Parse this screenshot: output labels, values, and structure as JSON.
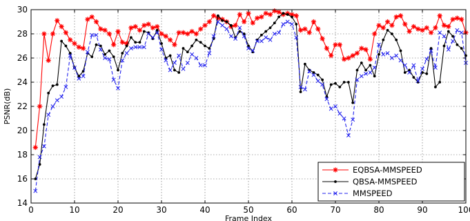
{
  "chart_data": {
    "type": "line",
    "xlabel": "Frame Index",
    "ylabel": "PSNR(dB)",
    "xlim": [
      0,
      100
    ],
    "ylim": [
      14,
      30
    ],
    "xticks": [
      0,
      10,
      20,
      30,
      40,
      50,
      60,
      70,
      80,
      90,
      100
    ],
    "yticks": [
      14,
      16,
      18,
      20,
      22,
      24,
      26,
      28,
      30
    ],
    "grid": true,
    "legend_position": "bottom-right",
    "series": [
      {
        "name": "EQBSA-MMSPEED",
        "color": "#ff0000",
        "line_style": "solid",
        "marker": "star",
        "x": [
          1,
          2,
          3,
          4,
          5,
          6,
          7,
          8,
          9,
          10,
          11,
          12,
          13,
          14,
          15,
          16,
          17,
          18,
          19,
          20,
          21,
          22,
          23,
          24,
          25,
          26,
          27,
          28,
          29,
          30,
          31,
          32,
          33,
          34,
          35,
          36,
          37,
          38,
          39,
          40,
          41,
          42,
          43,
          44,
          45,
          46,
          47,
          48,
          49,
          50,
          51,
          52,
          53,
          54,
          55,
          56,
          57,
          58,
          59,
          60,
          61,
          62,
          63,
          64,
          65,
          66,
          67,
          68,
          69,
          70,
          71,
          72,
          73,
          74,
          75,
          76,
          77,
          78,
          79,
          80,
          81,
          82,
          83,
          84,
          85,
          86,
          87,
          88,
          89,
          90,
          91,
          92,
          93,
          94,
          95,
          96,
          97,
          98,
          99,
          100
        ],
        "y": [
          18.6,
          22.0,
          28.0,
          25.8,
          28.0,
          29.1,
          28.6,
          28.1,
          27.5,
          27.2,
          26.9,
          26.8,
          29.2,
          29.4,
          29.0,
          28.4,
          28.3,
          28.0,
          27.1,
          28.2,
          27.3,
          27.2,
          28.5,
          28.6,
          28.3,
          28.7,
          28.8,
          28.5,
          28.6,
          28.0,
          27.8,
          27.5,
          27.1,
          28.1,
          28.1,
          28.0,
          28.2,
          28.0,
          28.4,
          28.7,
          29.0,
          29.5,
          29.3,
          29.2,
          29.0,
          28.6,
          28.7,
          29.6,
          29.0,
          29.7,
          28.9,
          29.3,
          29.4,
          29.7,
          29.6,
          29.9,
          29.8,
          29.6,
          29.7,
          29.6,
          29.5,
          28.3,
          28.4,
          28.1,
          29.0,
          28.4,
          27.6,
          26.8,
          26.2,
          27.1,
          27.1,
          25.9,
          26.0,
          26.2,
          26.4,
          26.8,
          26.7,
          25.9,
          28.0,
          28.7,
          28.5,
          29.0,
          28.7,
          29.4,
          29.5,
          28.8,
          28.2,
          28.6,
          28.4,
          28.3,
          28.5,
          28.1,
          28.5,
          29.5,
          28.7,
          28.6,
          29.2,
          29.3,
          29.2,
          28.1
        ]
      },
      {
        "name": "QBSA-MMSPEED",
        "color": "#000000",
        "line_style": "solid",
        "marker": "dot",
        "x": [
          1,
          2,
          3,
          4,
          5,
          6,
          7,
          8,
          9,
          10,
          11,
          12,
          13,
          14,
          15,
          16,
          17,
          18,
          19,
          20,
          21,
          22,
          23,
          24,
          25,
          26,
          27,
          28,
          29,
          30,
          31,
          32,
          33,
          34,
          35,
          36,
          37,
          38,
          39,
          40,
          41,
          42,
          43,
          44,
          45,
          46,
          47,
          48,
          49,
          50,
          51,
          52,
          53,
          54,
          55,
          56,
          57,
          58,
          59,
          60,
          61,
          62,
          63,
          64,
          65,
          66,
          67,
          68,
          69,
          70,
          71,
          72,
          73,
          74,
          75,
          76,
          77,
          78,
          79,
          80,
          81,
          82,
          83,
          84,
          85,
          86,
          87,
          88,
          89,
          90,
          91,
          92,
          93,
          94,
          95,
          96,
          97,
          98,
          99,
          100
        ],
        "y": [
          16.0,
          17.2,
          20.5,
          23.1,
          23.7,
          23.8,
          27.4,
          27.0,
          26.4,
          25.2,
          24.5,
          24.9,
          26.4,
          26.1,
          27.1,
          27.0,
          26.3,
          26.6,
          26.1,
          25.0,
          26.4,
          27.0,
          27.7,
          27.3,
          27.3,
          28.2,
          28.1,
          27.6,
          28.3,
          27.2,
          26.0,
          26.2,
          25.0,
          24.8,
          26.8,
          26.5,
          27.0,
          27.5,
          27.3,
          27.0,
          26.8,
          27.6,
          29.5,
          29.1,
          29.0,
          28.7,
          27.7,
          28.2,
          28.0,
          27.0,
          26.5,
          27.5,
          27.9,
          28.2,
          28.5,
          28.9,
          29.4,
          29.7,
          29.6,
          29.4,
          28.8,
          23.2,
          25.5,
          25.0,
          24.8,
          24.6,
          24.2,
          22.8,
          23.8,
          23.9,
          23.6,
          24.0,
          24.0,
          22.3,
          25.0,
          25.6,
          25.0,
          25.4,
          24.5,
          26.3,
          27.5,
          28.3,
          28.0,
          27.5,
          26.6,
          24.8,
          25.0,
          24.4,
          24.0,
          24.8,
          24.7,
          26.8,
          23.6,
          24.0,
          27.0,
          28.2,
          27.8,
          27.1,
          26.8,
          26.2
        ]
      },
      {
        "name": "MMSPEED",
        "color": "#2222ee",
        "line_style": "dashed",
        "marker": "x",
        "x": [
          1,
          2,
          3,
          4,
          5,
          6,
          7,
          8,
          9,
          10,
          11,
          12,
          13,
          14,
          15,
          16,
          17,
          18,
          19,
          20,
          21,
          22,
          23,
          24,
          25,
          26,
          27,
          28,
          29,
          30,
          31,
          32,
          33,
          34,
          35,
          36,
          37,
          38,
          39,
          40,
          41,
          42,
          43,
          44,
          45,
          46,
          47,
          48,
          49,
          50,
          51,
          52,
          53,
          54,
          55,
          56,
          57,
          58,
          59,
          60,
          61,
          62,
          63,
          64,
          65,
          66,
          67,
          68,
          69,
          70,
          71,
          72,
          73,
          74,
          75,
          76,
          77,
          78,
          79,
          80,
          81,
          82,
          83,
          84,
          85,
          86,
          87,
          88,
          89,
          90,
          91,
          92,
          93,
          94,
          95,
          96,
          97,
          98,
          99,
          100
        ],
        "y": [
          15.0,
          17.8,
          18.7,
          21.3,
          22.0,
          22.5,
          22.8,
          23.6,
          26.2,
          25.2,
          24.3,
          24.5,
          26.5,
          27.9,
          27.9,
          26.7,
          26.0,
          25.9,
          24.2,
          23.5,
          25.8,
          26.4,
          26.8,
          26.9,
          26.9,
          26.9,
          28.0,
          27.7,
          28.1,
          26.7,
          25.8,
          25.0,
          25.6,
          26.2,
          25.1,
          25.6,
          26.3,
          26.0,
          25.4,
          25.4,
          26.4,
          27.8,
          29.0,
          28.7,
          28.4,
          27.8,
          27.6,
          28.5,
          27.8,
          26.8,
          26.6,
          27.4,
          27.4,
          27.7,
          27.5,
          28.0,
          28.1,
          28.8,
          29.0,
          28.8,
          27.7,
          23.6,
          23.4,
          24.9,
          24.6,
          24.1,
          23.8,
          22.6,
          21.8,
          22.0,
          21.4,
          21.0,
          19.6,
          20.9,
          24.2,
          24.5,
          24.7,
          24.8,
          25.2,
          27.1,
          26.3,
          26.4,
          26.0,
          26.2,
          25.8,
          25.4,
          24.8,
          25.4,
          24.1,
          25.1,
          25.9,
          26.6,
          25.2,
          28.1,
          27.8,
          26.7,
          27.4,
          28.3,
          28.1,
          25.6
        ]
      }
    ]
  }
}
